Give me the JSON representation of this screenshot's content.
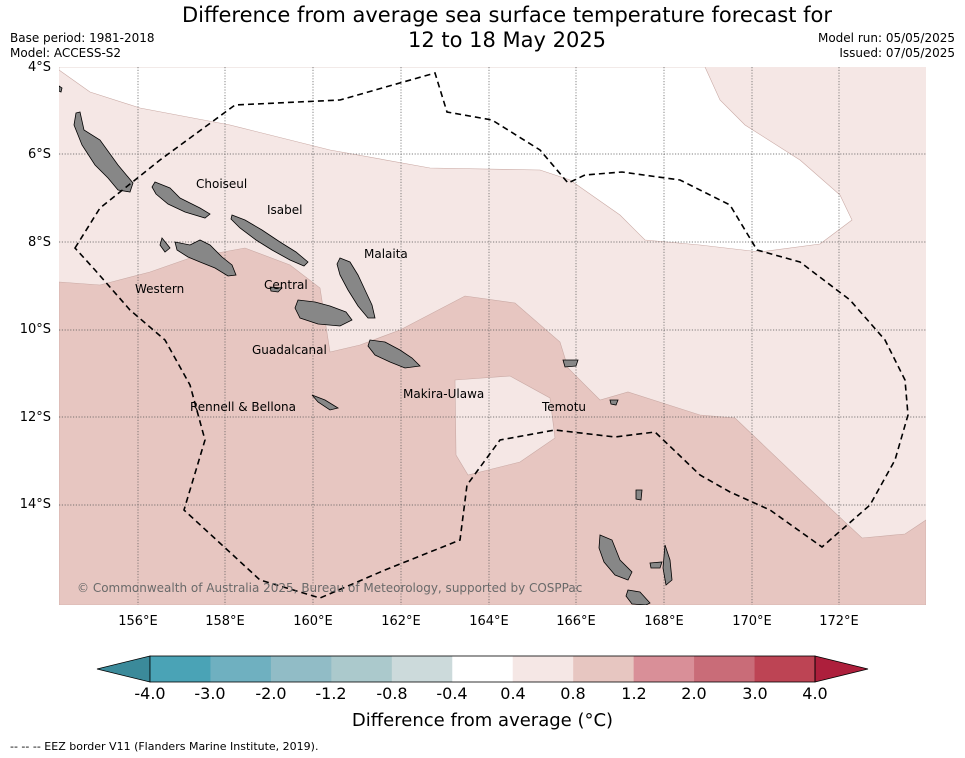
{
  "title": {
    "line1": "Difference from average sea surface temperature forecast for",
    "line2": "12 to 18 May 2025"
  },
  "meta_left": {
    "base_period": "Base period: 1981-2018",
    "model": "Model: ACCESS-S2"
  },
  "meta_right": {
    "model_run": "Model run: 05/05/2025",
    "issued": "Issued: 07/05/2025"
  },
  "map": {
    "lat_labels": [
      "4°S",
      "6°S",
      "8°S",
      "10°S",
      "12°S",
      "14°S"
    ],
    "lon_labels": [
      "156°E",
      "158°E",
      "160°E",
      "162°E",
      "164°E",
      "166°E",
      "168°E",
      "170°E",
      "172°E"
    ],
    "regions": [
      "Choiseul",
      "Isabel",
      "Malaita",
      "Western",
      "Central",
      "Guadalcanal",
      "Makira-Ulawa",
      "Rennell & Bellona",
      "Temotu"
    ],
    "copyright": "© Commonwealth of Australia 2025, Bureau of Meteorology, supported by COSPPac",
    "fill_colors": {
      "band_0_4_0_8": "#f5e7e5",
      "band_0_8_1_2": "#e7c6c1",
      "neutral": "#ffffff",
      "land": "#878787"
    }
  },
  "colorbar": {
    "labels": [
      "-4.0",
      "-3.0",
      "-2.0",
      "-1.2",
      "-0.8",
      "-0.4",
      "0.4",
      "0.8",
      "1.2",
      "2.0",
      "3.0",
      "4.0"
    ],
    "colors": [
      "#3b8a9a",
      "#4aa3b6",
      "#6fb0c0",
      "#91bcc6",
      "#abc9cc",
      "#ccdadb",
      "#ffffff",
      "#f5e7e5",
      "#e7c6c1",
      "#d98f98",
      "#c96c78",
      "#bd4454",
      "#ad1f3c"
    ],
    "title": "Difference from average (°C)"
  },
  "footnote": "--  --  -- EEZ border V11 (Flanders Marine Institute, 2019)."
}
